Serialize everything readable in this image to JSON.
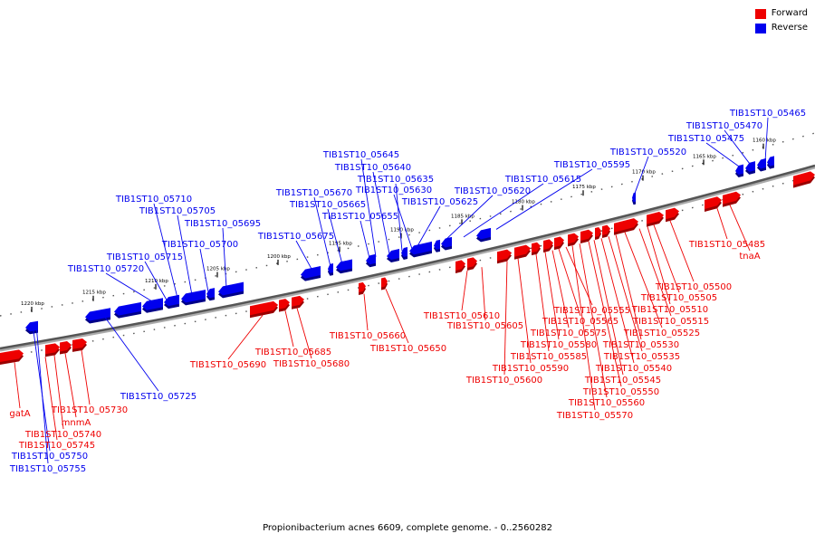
{
  "legend": {
    "forward_label": "Forward",
    "reverse_label": "Reverse",
    "forward_color": "#ee0000",
    "reverse_color": "#0000ee"
  },
  "caption": "Propionibacterium acnes 6609, complete genome. - 0..2560282",
  "ticks": [
    "1160 kbp",
    "1165 kbp",
    "1170 kbp",
    "1175 kbp",
    "1180 kbp",
    "1185 kbp",
    "1190 kbp",
    "1195 kbp",
    "1200 kbp",
    "1205 kbp",
    "1210 kbp",
    "1215 kbp",
    "1220 kbp"
  ],
  "reverse_labels": [
    "TIB1ST10_05465",
    "TIB1ST10_05470",
    "TIB1ST10_05475",
    "TIB1ST10_05520",
    "TIB1ST10_05595",
    "TIB1ST10_05615",
    "TIB1ST10_05620",
    "TIB1ST10_05645",
    "TIB1ST10_05640",
    "TIB1ST10_05635",
    "TIB1ST10_05630",
    "TIB1ST10_05625",
    "TIB1ST10_05670",
    "TIB1ST10_05665",
    "TIB1ST10_05655",
    "TIB1ST10_05710",
    "TIB1ST10_05705",
    "TIB1ST10_05695",
    "TIB1ST10_05675",
    "TIB1ST10_05700",
    "TIB1ST10_05715",
    "TIB1ST10_05720",
    "TIB1ST10_05725",
    "TIB1ST10_05750",
    "TIB1ST10_05755"
  ],
  "forward_labels": [
    "TIB1ST10_05485",
    "tnaA",
    "TIB1ST10_05500",
    "TIB1ST10_05505",
    "TIB1ST10_05510",
    "TIB1ST10_05515",
    "TIB1ST10_05525",
    "TIB1ST10_05530",
    "TIB1ST10_05535",
    "TIB1ST10_05540",
    "TIB1ST10_05545",
    "TIB1ST10_05550",
    "TIB1ST10_05560",
    "TIB1ST10_05570",
    "TIB1ST10_05555",
    "TIB1ST10_05565",
    "TIB1ST10_05575",
    "TIB1ST10_05580",
    "TIB1ST10_05585",
    "TIB1ST10_05590",
    "TIB1ST10_05600",
    "TIB1ST10_05605",
    "TIB1ST10_05610",
    "TIB1ST10_05660",
    "TIB1ST10_05650",
    "TIB1ST10_05685",
    "TIB1ST10_05680",
    "TIB1ST10_05690",
    "TIB1ST10_05730",
    "mnmA",
    "TIB1ST10_05740",
    "TIB1ST10_05745",
    "gatA"
  ]
}
